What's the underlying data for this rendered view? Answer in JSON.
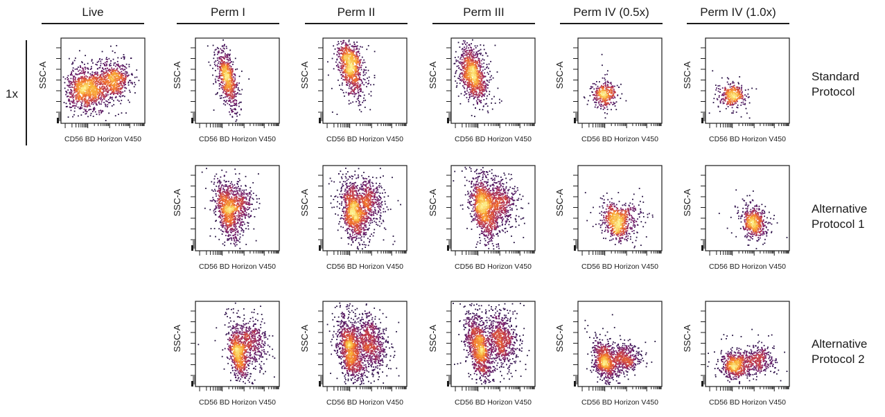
{
  "figure": {
    "scale_label": "1x",
    "columns": [
      "Live",
      "Perm I",
      "Perm II",
      "Perm III",
      "Perm IV (0.5x)",
      "Perm IV (1.0x)"
    ],
    "rows": [
      [
        "Standard",
        "Protocol"
      ],
      [
        "Alternative",
        "Protocol 1"
      ],
      [
        "Alternative",
        "Protocol 2"
      ]
    ]
  },
  "chart_data": {
    "type": "scatter",
    "subtype": "flow-cytometry-density-dot-plot",
    "xlabel": "CD56 BD Horizon V450",
    "ylabel": "SSC-A",
    "colormap": [
      "#0d0a2a",
      "#3b0f57",
      "#7a1f6b",
      "#c0394a",
      "#ef6c2c",
      "#f9b43a",
      "#fcf08e"
    ],
    "panels": [
      {
        "row": 0,
        "col": 0,
        "populations": [
          {
            "cx": 0.3,
            "cy": 0.4,
            "sx": 0.11,
            "sy": 0.12,
            "rot": 15,
            "n": 1000
          },
          {
            "cx": 0.62,
            "cy": 0.5,
            "sx": 0.1,
            "sy": 0.1,
            "rot": 10,
            "n": 650
          }
        ]
      },
      {
        "row": 0,
        "col": 1,
        "populations": [
          {
            "cx": 0.38,
            "cy": 0.52,
            "sx": 0.05,
            "sy": 0.17,
            "rot": 12,
            "n": 750
          }
        ]
      },
      {
        "row": 0,
        "col": 2,
        "populations": [
          {
            "cx": 0.33,
            "cy": 0.67,
            "sx": 0.065,
            "sy": 0.16,
            "rot": 12,
            "n": 950
          }
        ]
      },
      {
        "row": 0,
        "col": 3,
        "populations": [
          {
            "cx": 0.26,
            "cy": 0.58,
            "sx": 0.075,
            "sy": 0.16,
            "rot": 14,
            "n": 1000
          }
        ]
      },
      {
        "row": 0,
        "col": 4,
        "populations": [
          {
            "cx": 0.32,
            "cy": 0.33,
            "sx": 0.07,
            "sy": 0.07,
            "rot": 20,
            "n": 380
          }
        ]
      },
      {
        "row": 0,
        "col": 5,
        "populations": [
          {
            "cx": 0.33,
            "cy": 0.33,
            "sx": 0.075,
            "sy": 0.065,
            "rot": 22,
            "n": 380
          }
        ]
      },
      {
        "row": 1,
        "col": 1,
        "populations": [
          {
            "cx": 0.38,
            "cy": 0.47,
            "sx": 0.06,
            "sy": 0.16,
            "rot": 12,
            "n": 750
          },
          {
            "cx": 0.52,
            "cy": 0.56,
            "sx": 0.08,
            "sy": 0.12,
            "rot": 10,
            "n": 400
          }
        ]
      },
      {
        "row": 1,
        "col": 2,
        "populations": [
          {
            "cx": 0.36,
            "cy": 0.45,
            "sx": 0.06,
            "sy": 0.17,
            "rot": 12,
            "n": 900
          },
          {
            "cx": 0.53,
            "cy": 0.57,
            "sx": 0.09,
            "sy": 0.13,
            "rot": 10,
            "n": 550
          }
        ]
      },
      {
        "row": 1,
        "col": 3,
        "populations": [
          {
            "cx": 0.38,
            "cy": 0.5,
            "sx": 0.065,
            "sy": 0.18,
            "rot": 12,
            "n": 1000
          },
          {
            "cx": 0.56,
            "cy": 0.58,
            "sx": 0.1,
            "sy": 0.14,
            "rot": 10,
            "n": 650
          }
        ]
      },
      {
        "row": 1,
        "col": 4,
        "populations": [
          {
            "cx": 0.45,
            "cy": 0.33,
            "sx": 0.065,
            "sy": 0.11,
            "rot": 24,
            "n": 550
          },
          {
            "cx": 0.6,
            "cy": 0.4,
            "sx": 0.1,
            "sy": 0.09,
            "rot": 15,
            "n": 180
          }
        ]
      },
      {
        "row": 1,
        "col": 5,
        "populations": [
          {
            "cx": 0.58,
            "cy": 0.33,
            "sx": 0.07,
            "sy": 0.1,
            "rot": 18,
            "n": 550
          }
        ]
      },
      {
        "row": 2,
        "col": 1,
        "populations": [
          {
            "cx": 0.51,
            "cy": 0.4,
            "sx": 0.05,
            "sy": 0.15,
            "rot": 10,
            "n": 700
          },
          {
            "cx": 0.66,
            "cy": 0.52,
            "sx": 0.09,
            "sy": 0.12,
            "rot": 10,
            "n": 450
          }
        ]
      },
      {
        "row": 2,
        "col": 2,
        "populations": [
          {
            "cx": 0.33,
            "cy": 0.42,
            "sx": 0.07,
            "sy": 0.19,
            "rot": 12,
            "n": 1100
          },
          {
            "cx": 0.57,
            "cy": 0.52,
            "sx": 0.09,
            "sy": 0.16,
            "rot": 10,
            "n": 750
          }
        ]
      },
      {
        "row": 2,
        "col": 3,
        "populations": [
          {
            "cx": 0.33,
            "cy": 0.45,
            "sx": 0.065,
            "sy": 0.19,
            "rot": 12,
            "n": 1100
          },
          {
            "cx": 0.6,
            "cy": 0.56,
            "sx": 0.09,
            "sy": 0.16,
            "rot": 10,
            "n": 750
          }
        ]
      },
      {
        "row": 2,
        "col": 4,
        "populations": [
          {
            "cx": 0.32,
            "cy": 0.3,
            "sx": 0.06,
            "sy": 0.11,
            "rot": 16,
            "n": 700
          },
          {
            "cx": 0.55,
            "cy": 0.33,
            "sx": 0.1,
            "sy": 0.08,
            "rot": 10,
            "n": 500
          }
        ]
      },
      {
        "row": 2,
        "col": 5,
        "populations": [
          {
            "cx": 0.35,
            "cy": 0.25,
            "sx": 0.07,
            "sy": 0.07,
            "rot": 18,
            "n": 550
          },
          {
            "cx": 0.62,
            "cy": 0.3,
            "sx": 0.1,
            "sy": 0.08,
            "rot": 10,
            "n": 400
          }
        ]
      }
    ]
  }
}
